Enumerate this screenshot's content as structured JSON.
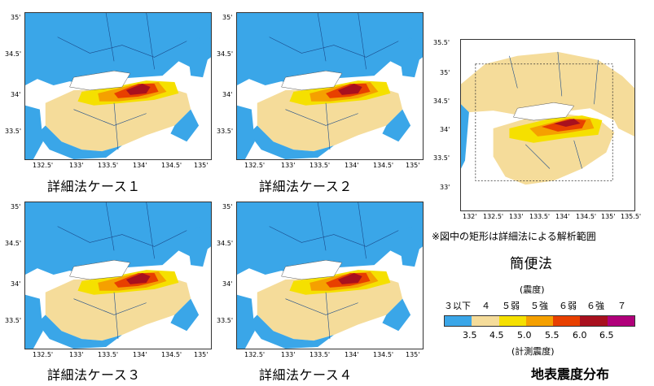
{
  "colors": {
    "sea": "#ffffff",
    "s3": "#3aa6e8",
    "s4": "#f5dc9a",
    "s5l": "#f5e000",
    "s5u": "#f5a000",
    "s6l": "#e84000",
    "s6u": "#a8101e",
    "s7": "#b0007a",
    "border": "#1a4a8a"
  },
  "maps": [
    {
      "caption": "詳細法ケース１",
      "ylabels": [
        "35'",
        "34.5'",
        "34'",
        "33.5'"
      ],
      "xlabels": [
        "132.5'",
        "133'",
        "133.5'",
        "134'",
        "134.5'",
        "135'"
      ]
    },
    {
      "caption": "詳細法ケース２",
      "ylabels": [
        "35'",
        "34.5'",
        "34'",
        "33.5'"
      ],
      "xlabels": [
        "132.5'",
        "133'",
        "133.5'",
        "134'",
        "134.5'",
        "135'"
      ]
    },
    {
      "caption": "詳細法ケース３",
      "ylabels": [
        "35'",
        "34.5'",
        "34'",
        "33.5'"
      ],
      "xlabels": [
        "132.5'",
        "133'",
        "133.5'",
        "134'",
        "134.5'",
        "135'"
      ]
    },
    {
      "caption": "詳細法ケース４",
      "ylabels": [
        "35'",
        "34.5'",
        "34'",
        "33.5'"
      ],
      "xlabels": [
        "132.5'",
        "133'",
        "133.5'",
        "134'",
        "134.5'",
        "135'"
      ]
    }
  ],
  "simple_map": {
    "caption": "簡便法",
    "note": "※図中の矩形は詳細法による解析範囲",
    "ylabels": [
      "35.5'",
      "35'",
      "34.5'",
      "34'",
      "33.5'",
      "33'"
    ],
    "xlabels": [
      "132'",
      "132.5'",
      "133'",
      "133.5'",
      "134'",
      "134.5'",
      "135'",
      "135.5'"
    ]
  },
  "legend": {
    "title_top": "(震度)",
    "classes": [
      "３以下",
      "４",
      "５弱",
      "５強",
      "６弱",
      "６強",
      "７"
    ],
    "values": [
      "3.5",
      "4.5",
      "5.0",
      "5.5",
      "6.0",
      "6.5"
    ],
    "title_bottom": "(計測震度)"
  },
  "page_title": "地表震度分布"
}
